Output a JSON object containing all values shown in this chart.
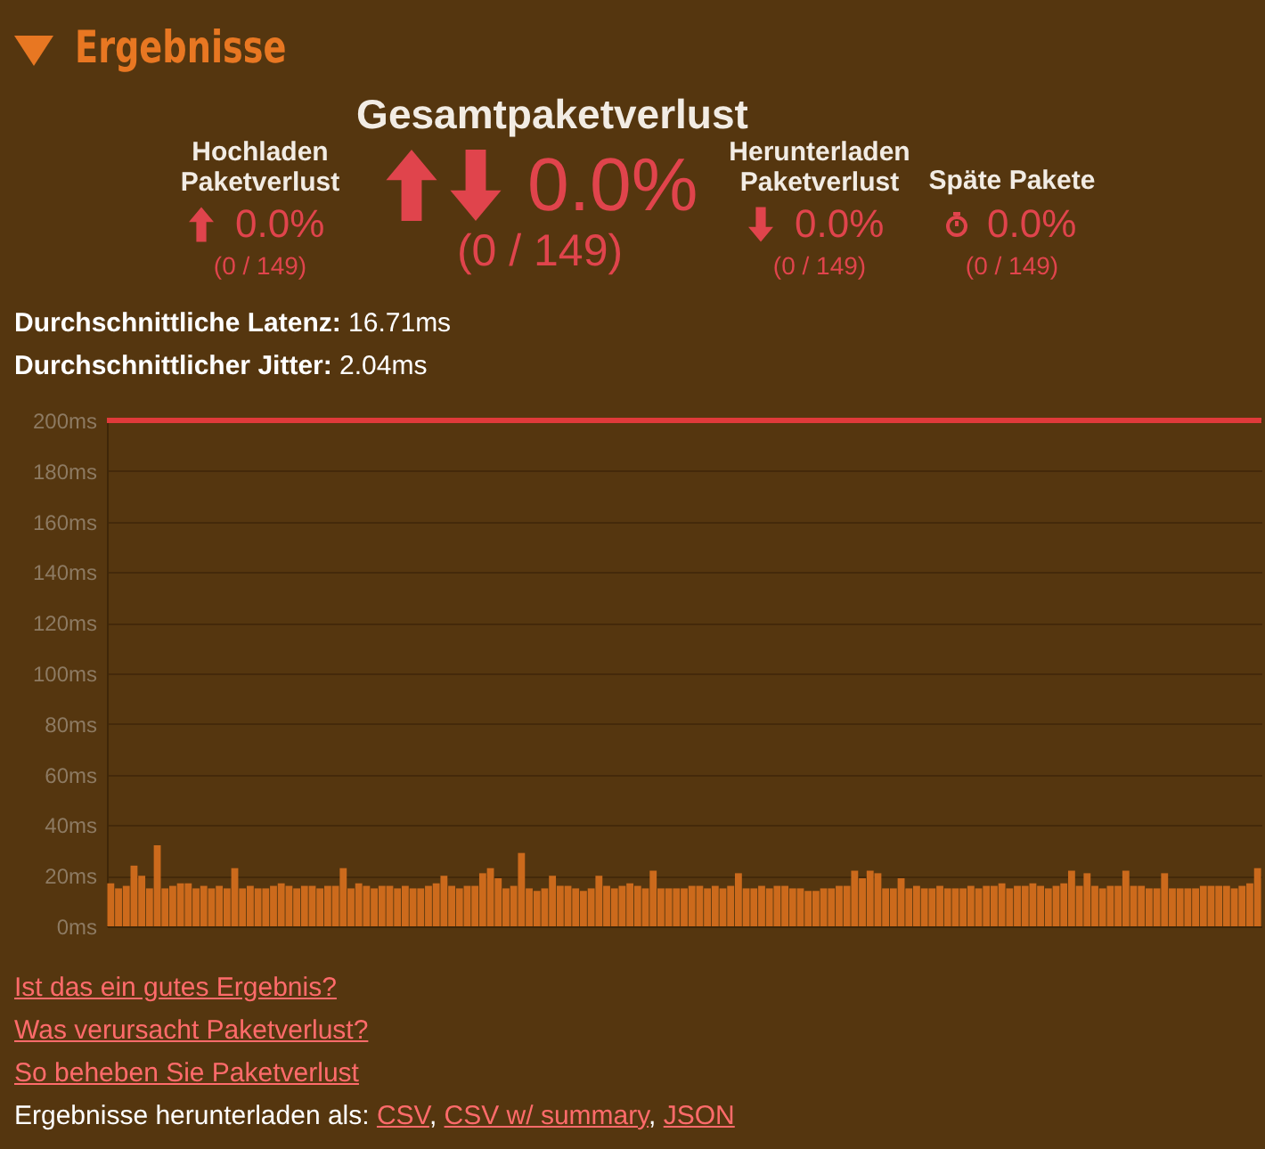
{
  "chart_data": {
    "type": "bar",
    "title": "Ergebnisse",
    "annotations": [
      "Gesamtpaketverlust",
      "0.0%",
      "(0 / 149)",
      "Hochladen Paketverlust",
      "0.0%",
      "(0 / 149)",
      "Herunterladen Paketverlust",
      "0.0%",
      "(0 / 149)",
      "Späte Pakete",
      "0.0%",
      "(0 / 149)",
      "Durchschnittliche Latenz: 16.71ms",
      "Durchschnittlicher Jitter: 2.04ms",
      "Ist das ein gutes Ergebnis?",
      "Was verursacht Paketverlust?",
      "So beheben Sie Paketverlust",
      "Ergebnisse herunterladen als: CSV, CSV w/ summary, JSON"
    ],
    "categories": [
      null,
      null,
      null,
      null,
      null,
      null,
      null,
      null,
      null,
      null,
      null,
      null,
      null,
      null,
      null,
      null,
      null,
      null,
      null,
      null,
      null,
      null,
      null,
      null,
      null,
      null,
      null,
      null,
      null,
      null,
      null,
      null,
      null,
      null,
      null,
      null,
      null,
      null,
      null,
      null,
      null,
      null,
      null,
      null,
      null,
      null,
      null,
      null,
      null,
      null,
      null,
      null,
      null,
      null,
      null,
      null,
      null,
      null,
      null,
      null,
      null,
      null,
      null,
      null,
      null,
      null,
      null,
      null,
      null,
      null,
      null,
      null,
      null,
      null,
      null,
      null,
      null,
      null,
      null,
      null,
      null,
      null,
      null,
      null,
      null,
      null,
      null,
      null,
      null,
      null,
      null,
      null,
      null,
      null,
      null,
      null,
      null,
      null,
      null,
      null,
      null,
      null,
      null,
      null,
      null,
      null,
      null,
      null,
      null,
      null,
      null,
      null,
      null,
      null,
      null,
      null,
      null,
      null,
      null,
      null,
      null,
      null,
      null,
      null,
      null,
      null,
      null,
      null,
      null,
      null,
      null,
      null,
      null,
      null,
      null,
      null,
      null,
      null,
      null,
      null,
      null,
      null,
      null,
      null,
      null,
      null,
      null,
      null,
      null
    ],
    "values": [
      17,
      15,
      16,
      24,
      20,
      15,
      32,
      15,
      16,
      17,
      17,
      15,
      16,
      15,
      16,
      15,
      23,
      15,
      16,
      15,
      15,
      16,
      17,
      16,
      15,
      16,
      16,
      15,
      16,
      16,
      23,
      15,
      17,
      16,
      15,
      16,
      16,
      15,
      16,
      15,
      15,
      16,
      17,
      20,
      16,
      15,
      16,
      16,
      21,
      23,
      19,
      15,
      16,
      29,
      15,
      14,
      15,
      20,
      16,
      16,
      15,
      14,
      15,
      20,
      16,
      15,
      16,
      17,
      16,
      15,
      22,
      15,
      15,
      15,
      15,
      16,
      16,
      15,
      16,
      15,
      16,
      21,
      15,
      15,
      16,
      15,
      16,
      16,
      15,
      15,
      14,
      14,
      15,
      15,
      16,
      16,
      22,
      19,
      22,
      21,
      15,
      15,
      19,
      15,
      16,
      15,
      15,
      16,
      15,
      15,
      15,
      16,
      15,
      16,
      16,
      17,
      15,
      16,
      16,
      17,
      16,
      15,
      16,
      17,
      22,
      16,
      21,
      16,
      15,
      16,
      16,
      22,
      16,
      16,
      15,
      15,
      21,
      15,
      15,
      15,
      15,
      16,
      16,
      16,
      16,
      15,
      16,
      17,
      23
    ],
    "color": "#cc6a1c",
    "ylim": [
      0,
      200
    ],
    "yticks": [
      {
        "value": 0,
        "label": "0ms"
      },
      {
        "value": 20,
        "label": "20ms"
      },
      {
        "value": 40,
        "label": "40ms"
      },
      {
        "value": 60,
        "label": "60ms"
      },
      {
        "value": 80,
        "label": "80ms"
      },
      {
        "value": 100,
        "label": "100ms"
      },
      {
        "value": 120,
        "label": "120ms"
      },
      {
        "value": 140,
        "label": "140ms"
      },
      {
        "value": 160,
        "label": "160ms"
      },
      {
        "value": 180,
        "label": "180ms"
      },
      {
        "value": 200,
        "label": "200ms"
      }
    ],
    "ref_lines": [
      {
        "axis": "y",
        "value": 200,
        "color": "#e03a3a"
      }
    ],
    "grid": "y"
  }
}
